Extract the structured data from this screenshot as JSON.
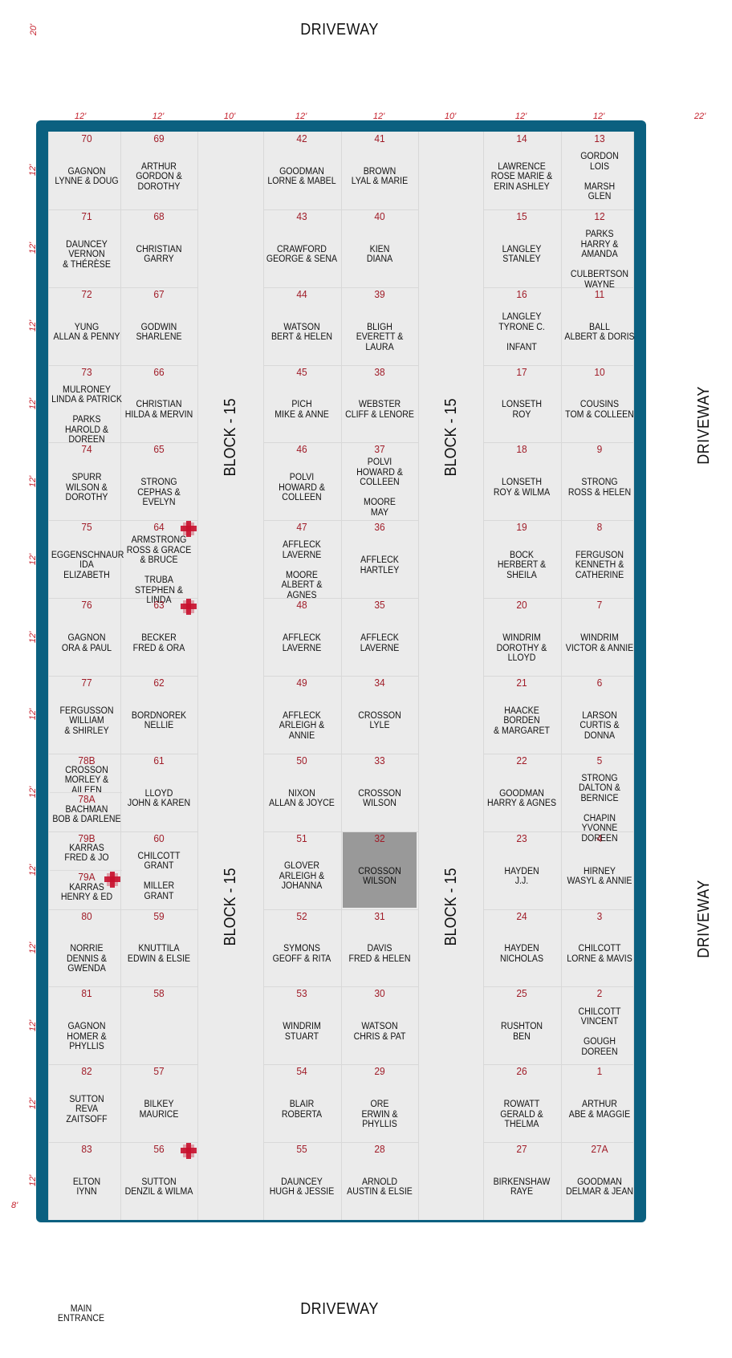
{
  "driveways": {
    "top": "DRIVEWAY",
    "bottom": "DRIVEWAY",
    "right_upper": "DRIVEWAY",
    "right_lower": "DRIVEWAY"
  },
  "dimensions": {
    "corner": "20'",
    "column_widths": [
      "12'",
      "12'",
      "10'",
      "12'",
      "12'",
      "10'",
      "12'",
      "12'",
      "22'"
    ],
    "row_height": "12'",
    "bottom_margin": "8'"
  },
  "aisle_labels": {
    "left_upper": "BLOCK - 15",
    "left_lower": "BLOCK - 15",
    "right_upper": "BLOCK - 15",
    "right_lower": "BLOCK - 15"
  },
  "main_entrance": "MAIN\nENTRANCE",
  "columns": [
    {
      "plots": [
        {
          "num": "70",
          "names": "GAGNON\nLYNNE  &  DOUG"
        },
        {
          "num": "71",
          "names": "DAUNCEY\nVERNON\n& THÉRÈSE"
        },
        {
          "num": "72",
          "names": "YUNG\nALLAN & PENNY"
        },
        {
          "num": "73",
          "names": "MULRONEY\nLINDA & PATRICK\n\nPARKS\nHAROLD & DOREEN"
        },
        {
          "num": "74",
          "names": "SPURR\nWILSON &\nDOROTHY"
        },
        {
          "num": "75",
          "names": "EGGENSCHNAUR\nIDA\nELIZABETH"
        },
        {
          "num": "76",
          "names": "GAGNON\nORA & PAUL"
        },
        {
          "num": "77",
          "names": "FERGUSSON\nWILLIAM\n& SHIRLEY"
        },
        {
          "num": "78B",
          "names": "CROSSON\nMORLEY & AILEEN",
          "num2": "78A",
          "names2": "BACHMAN\nBOB & DARLENE"
        },
        {
          "num": "79B",
          "names": "KARRAS\nFRED & JO",
          "num2": "79A",
          "names2": "KARRAS\nHENRY & ED"
        },
        {
          "num": "80",
          "names": "NORRIE\nDENNIS & GWENDA"
        },
        {
          "num": "81",
          "names": "GAGNON\nHOMER & PHYLLIS"
        },
        {
          "num": "82",
          "names": "SUTTON\nREVA\nZAITSOFF"
        },
        {
          "num": "83",
          "names": "ELTON\nIYNN"
        }
      ]
    },
    {
      "plots": [
        {
          "num": "69",
          "names": "ARTHUR\nGORDON &\nDOROTHY"
        },
        {
          "num": "68",
          "names": "CHRISTIAN\nGARRY"
        },
        {
          "num": "67",
          "names": "GODWIN\nSHARLENE"
        },
        {
          "num": "66",
          "names": "CHRISTIAN\nHILDA & MERVIN"
        },
        {
          "num": "65",
          "names": "STRONG\nCEPHAS & EVELYN"
        },
        {
          "num": "64",
          "names": "ARMSTRONG\nROSS & GRACE\n& BRUCE\n\nTRUBA\nSTEPHEN & LINDA"
        },
        {
          "num": "63",
          "names": "BECKER\nFRED & ORA"
        },
        {
          "num": "62",
          "names": "BORDNOREK\nNELLIE"
        },
        {
          "num": "61",
          "names": "LLOYD\nJOHN & KAREN"
        },
        {
          "num": "60",
          "names": "CHILCOTT\nGRANT\n\nMILLER\nGRANT"
        },
        {
          "num": "59",
          "names": "KNUTTILA\nEDWIN & ELSIE"
        },
        {
          "num": "58",
          "names": ""
        },
        {
          "num": "57",
          "names": "BILKEY\nMAURICE"
        },
        {
          "num": "56",
          "names": "SUTTON\nDENZIL & WILMA"
        }
      ]
    },
    {
      "plots": [
        {
          "num": "42",
          "names": "GOODMAN\nLORNE & MABEL"
        },
        {
          "num": "43",
          "names": "CRAWFORD\nGEORGE & SENA"
        },
        {
          "num": "44",
          "names": "WATSON\nBERT & HELEN"
        },
        {
          "num": "45",
          "names": "PICH\nMIKE & ANNE"
        },
        {
          "num": "46",
          "names": "POLVI\nHOWARD &\nCOLLEEN"
        },
        {
          "num": "47",
          "names": "AFFLECK\nLAVERNE\n\nMOORE\nALBERT & AGNES"
        },
        {
          "num": "48",
          "names": "AFFLECK\nLAVERNE"
        },
        {
          "num": "49",
          "names": "AFFLECK\nARLEIGH & ANNIE"
        },
        {
          "num": "50",
          "names": "NIXON\nALLAN & JOYCE"
        },
        {
          "num": "51",
          "names": "GLOVER\nARLEIGH &\nJOHANNA"
        },
        {
          "num": "52",
          "names": "SYMONS\nGEOFF & RITA"
        },
        {
          "num": "53",
          "names": "WINDRIM\nSTUART"
        },
        {
          "num": "54",
          "names": "BLAIR\nROBERTA"
        },
        {
          "num": "55",
          "names": "DAUNCEY\nHUGH & JESSIE"
        }
      ]
    },
    {
      "plots": [
        {
          "num": "41",
          "names": "BROWN\nLYAL & MARIE"
        },
        {
          "num": "40",
          "names": "KIEN\nDIANA"
        },
        {
          "num": "39",
          "names": "BLIGH\nEVERETT & LAURA"
        },
        {
          "num": "38",
          "names": "WEBSTER\nCLIFF & LENORE"
        },
        {
          "num": "37",
          "names": "POLVI\nHOWARD &\nCOLLEEN\n\nMOORE\nMAY"
        },
        {
          "num": "36",
          "names": "AFFLECK\nHARTLEY"
        },
        {
          "num": "35",
          "names": "AFFLECK\nLAVERNE"
        },
        {
          "num": "34",
          "names": "CROSSON\nLYLE"
        },
        {
          "num": "33",
          "names": "CROSSON\nWILSON"
        },
        {
          "num": "32",
          "names": "CROSSON\nWILSON"
        },
        {
          "num": "31",
          "names": "DAVIS\nFRED & HELEN"
        },
        {
          "num": "30",
          "names": "WATSON\nCHRIS & PAT"
        },
        {
          "num": "29",
          "names": "ORE\nERWIN & PHYLLIS"
        },
        {
          "num": "28",
          "names": "ARNOLD\nAUSTIN & ELSIE"
        }
      ]
    },
    {
      "plots": [
        {
          "num": "14",
          "names": "LAWRENCE\nROSE MARIE &\nERIN ASHLEY"
        },
        {
          "num": "15",
          "names": "LANGLEY\nSTANLEY"
        },
        {
          "num": "16",
          "names": "LANGLEY\nTYRONE C.\n\nINFANT"
        },
        {
          "num": "17",
          "names": "LONSETH\nROY"
        },
        {
          "num": "18",
          "names": "LONSETH\nROY & WILMA"
        },
        {
          "num": "19",
          "names": "BOCK\nHERBERT &\nSHEILA"
        },
        {
          "num": "20",
          "names": "WINDRIM\nDOROTHY & LLOYD"
        },
        {
          "num": "21",
          "names": "HAACKE\nBORDEN\n& MARGARET"
        },
        {
          "num": "22",
          "names": "GOODMAN\nHARRY & AGNES"
        },
        {
          "num": "23",
          "names": "HAYDEN\nJ.J."
        },
        {
          "num": "24",
          "names": "HAYDEN\nNICHOLAS"
        },
        {
          "num": "25",
          "names": "RUSHTON\nBEN"
        },
        {
          "num": "26",
          "names": "ROWATT\nGERALD & THELMA"
        },
        {
          "num": "27",
          "names": "BIRKENSHAW\nRAYE"
        }
      ]
    },
    {
      "plots": [
        {
          "num": "13",
          "names": "GORDON\nLOIS\n\nMARSH\nGLEN"
        },
        {
          "num": "12",
          "names": "PARKS\nHARRY & AMANDA\n\nCULBERTSON\nWAYNE"
        },
        {
          "num": "11",
          "names": "BALL\nALBERT & DORIS"
        },
        {
          "num": "10",
          "names": "COUSINS\nTOM & COLLEEN"
        },
        {
          "num": "9",
          "names": "STRONG\nROSS & HELEN"
        },
        {
          "num": "8",
          "names": "FERGUSON\nKENNETH &\nCATHERINE"
        },
        {
          "num": "7",
          "names": "WINDRIM\nVICTOR & ANNIE"
        },
        {
          "num": "6",
          "names": "LARSON\nCURTIS & DONNA"
        },
        {
          "num": "5",
          "names": "STRONG\nDALTON & BERNICE\n\nCHAPIN\nYVONNE DOREEN"
        },
        {
          "num": "4",
          "names": "HIRNEY\nWASYL & ANNIE"
        },
        {
          "num": "3",
          "names": "CHILCOTT\nLORNE & MAVIS"
        },
        {
          "num": "2",
          "names": "CHILCOTT\nVINCENT\n\nGOUGH\nDOREEN"
        },
        {
          "num": "1",
          "names": "ARTHUR\nABE & MAGGIE"
        },
        {
          "num": "27A",
          "names": "GOODMAN\nDELMAR & JEAN"
        }
      ]
    }
  ],
  "highlighted_plot": "32",
  "flags_at": [
    "64",
    "63",
    "79A",
    "56"
  ],
  "colors": {
    "frame": "#0b6080",
    "plot_bg": "#ebebeb",
    "number": "#a01c28",
    "dimension": "#c41e2a",
    "highlight": "#999999",
    "flag": "#c8102e"
  }
}
